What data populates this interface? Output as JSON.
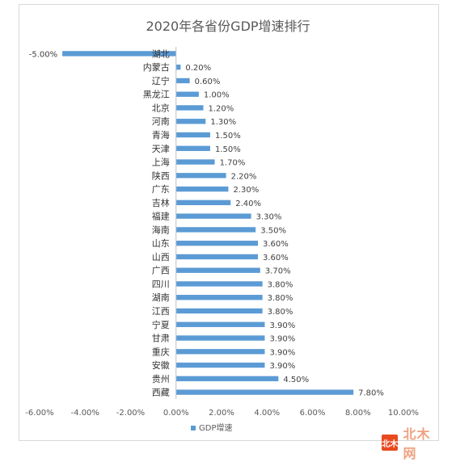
{
  "chart_data": {
    "type": "bar",
    "orientation": "horizontal",
    "title": "2020年各省份GDP增速排行",
    "categories": [
      "湖北",
      "内蒙古",
      "辽宁",
      "黑龙江",
      "北京",
      "河南",
      "青海",
      "天津",
      "上海",
      "陕西",
      "广东",
      "吉林",
      "福建",
      "海南",
      "山东",
      "山西",
      "广西",
      "四川",
      "湖南",
      "江西",
      "宁夏",
      "甘肃",
      "重庆",
      "安徽",
      "贵州",
      "西藏"
    ],
    "series": [
      {
        "name": "GDP增速",
        "values": [
          -5.0,
          0.2,
          0.6,
          1.0,
          1.2,
          1.3,
          1.5,
          1.5,
          1.7,
          2.2,
          2.3,
          2.4,
          3.3,
          3.5,
          3.6,
          3.6,
          3.7,
          3.8,
          3.8,
          3.8,
          3.9,
          3.9,
          3.9,
          3.9,
          4.5,
          7.8
        ],
        "labels": [
          "-5.00%",
          "0.20%",
          "0.60%",
          "1.00%",
          "1.20%",
          "1.30%",
          "1.50%",
          "1.50%",
          "1.70%",
          "2.20%",
          "2.30%",
          "2.40%",
          "3.30%",
          "3.50%",
          "3.60%",
          "3.60%",
          "3.70%",
          "3.80%",
          "3.80%",
          "3.80%",
          "3.90%",
          "3.90%",
          "3.90%",
          "3.90%",
          "4.50%",
          "7.80%"
        ],
        "color": "#5b9bd5"
      }
    ],
    "xlim": [
      -6,
      10
    ],
    "xticks": [
      -6,
      -4,
      -2,
      0,
      2,
      4,
      6,
      8,
      10
    ],
    "xtick_labels": [
      "-6.00%",
      "-4.00%",
      "-2.00%",
      "0.00%",
      "2.00%",
      "4.00%",
      "6.00%",
      "8.00%",
      "10.00%"
    ],
    "grid": false,
    "legend_position": "bottom"
  },
  "watermark": {
    "badge": "北木",
    "text": "北木网"
  }
}
